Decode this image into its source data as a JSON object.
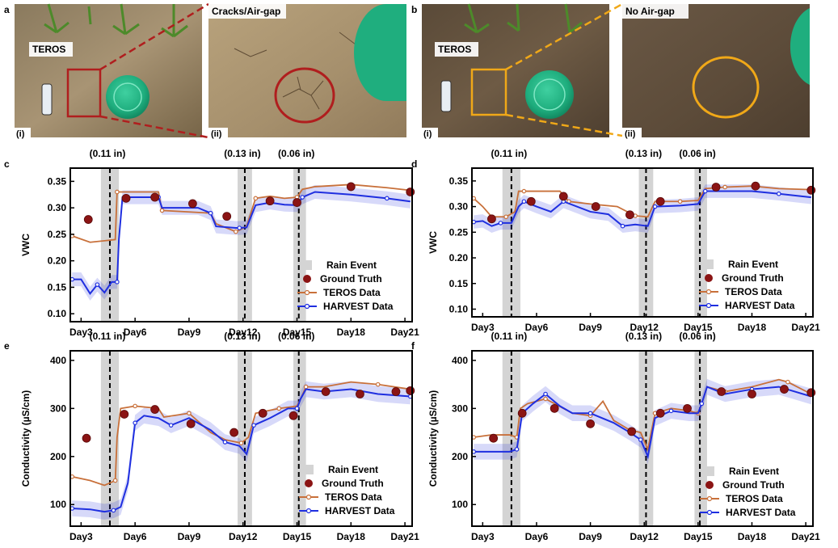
{
  "photos": {
    "a": {
      "letter": "a",
      "overlay_label": "TEROS",
      "zoom_caption": "Cracks/Air-gap",
      "sub_left": "(i)",
      "sub_right": "(ii)",
      "accent": "#b01e1e"
    },
    "b": {
      "letter": "b",
      "overlay_label": "TEROS",
      "zoom_caption": "No Air-gap",
      "sub_left": "(i)",
      "sub_right": "(ii)",
      "accent": "#f0a818"
    }
  },
  "legend_labels": {
    "rain": "Rain Event",
    "truth": "Ground Truth",
    "teros": "TEROS Data",
    "harvest": "HARVEST Data"
  },
  "colors": {
    "teros": "#c8703a",
    "harvest": "#1f2fe0",
    "truth": "#8b1414",
    "rain": "#d4d4d4"
  },
  "chart_data": [
    {
      "panel": "c",
      "type": "line",
      "ylabel": "VWC",
      "xlim": [
        2.4,
        21.4
      ],
      "ylim": [
        0.085,
        0.375
      ],
      "yticks": [
        0.1,
        0.15,
        0.2,
        0.25,
        0.3,
        0.35
      ],
      "ytick_labels": [
        "0.10",
        "0.15",
        "0.20",
        "0.25",
        "0.30",
        "0.35"
      ],
      "xticks": [
        3,
        6,
        9,
        12,
        15,
        18,
        21
      ],
      "xtick_labels": [
        "Day3",
        "Day6",
        "Day9",
        "Day12",
        "Day15",
        "Day18",
        "Day21"
      ],
      "rain_events": [
        {
          "start": 4.1,
          "end": 5.1,
          "line": 4.6,
          "label": "(0.11 in)"
        },
        {
          "start": 11.7,
          "end": 12.5,
          "line": 12.1,
          "label": "(0.13 in)"
        },
        {
          "start": 14.8,
          "end": 15.5,
          "line": 15.1,
          "label": "(0.06 in)"
        }
      ],
      "series": [
        {
          "name": "TEROS Data",
          "key": "teros",
          "x": [
            2.5,
            3.5,
            4.9,
            5.0,
            5.2,
            7.3,
            7.5,
            10.2,
            10.5,
            11.6,
            11.8,
            12.2,
            12.7,
            13.5,
            14.3,
            15.0,
            15.3,
            16.0,
            18.0,
            20.0,
            21.3
          ],
          "y": [
            0.247,
            0.235,
            0.24,
            0.33,
            0.33,
            0.33,
            0.295,
            0.29,
            0.27,
            0.255,
            0.258,
            0.265,
            0.318,
            0.322,
            0.318,
            0.32,
            0.335,
            0.34,
            0.344,
            0.338,
            0.333
          ]
        },
        {
          "name": "HARVEST Data",
          "key": "harvest",
          "x": [
            2.5,
            3.0,
            3.5,
            3.9,
            4.3,
            4.7,
            5.0,
            5.1,
            5.3,
            7.3,
            7.5,
            9.5,
            10.2,
            10.5,
            11.6,
            11.8,
            12.2,
            12.7,
            13.5,
            14.3,
            15.0,
            15.3,
            16.0,
            18.0,
            20.0,
            21.3
          ],
          "y": [
            0.165,
            0.165,
            0.138,
            0.155,
            0.14,
            0.16,
            0.16,
            0.24,
            0.32,
            0.32,
            0.3,
            0.3,
            0.29,
            0.265,
            0.262,
            0.262,
            0.263,
            0.305,
            0.31,
            0.306,
            0.305,
            0.32,
            0.33,
            0.325,
            0.318,
            0.312
          ]
        },
        {
          "name": "Ground Truth",
          "key": "truth",
          "x": [
            3.4,
            5.5,
            7.1,
            9.2,
            11.1,
            13.5,
            15.0,
            18.0,
            21.3
          ],
          "y": [
            0.278,
            0.318,
            0.32,
            0.308,
            0.284,
            0.313,
            0.31,
            0.34,
            0.33
          ]
        }
      ]
    },
    {
      "panel": "d",
      "type": "line",
      "ylabel": "VWC",
      "xlim": [
        2.4,
        21.4
      ],
      "ylim": [
        0.085,
        0.375
      ],
      "yticks": [
        0.1,
        0.15,
        0.2,
        0.25,
        0.3,
        0.35
      ],
      "ytick_labels": [
        "0.10",
        "0.15",
        "0.20",
        "0.25",
        "0.30",
        "0.35"
      ],
      "xticks": [
        3,
        6,
        9,
        12,
        15,
        18,
        21
      ],
      "xtick_labels": [
        "Day3",
        "Day6",
        "Day9",
        "Day12",
        "Day15",
        "Day18",
        "Day21"
      ],
      "rain_events": [
        {
          "start": 4.1,
          "end": 5.1,
          "line": 4.6,
          "label": "(0.11 in)"
        },
        {
          "start": 11.7,
          "end": 12.5,
          "line": 12.1,
          "label": "(0.13 in)"
        },
        {
          "start": 14.8,
          "end": 15.5,
          "line": 15.1,
          "label": "(0.06 in)"
        }
      ],
      "series": [
        {
          "name": "TEROS Data",
          "key": "teros",
          "x": [
            2.5,
            3.0,
            3.5,
            4.3,
            4.8,
            5.0,
            5.3,
            6.5,
            7.3,
            7.8,
            9.0,
            10.5,
            11.5,
            12.2,
            12.6,
            14.0,
            15.0,
            15.4,
            16.5,
            18.0,
            19.5,
            21.3
          ],
          "y": [
            0.316,
            0.3,
            0.28,
            0.28,
            0.29,
            0.33,
            0.33,
            0.33,
            0.33,
            0.31,
            0.305,
            0.3,
            0.282,
            0.28,
            0.31,
            0.31,
            0.312,
            0.335,
            0.338,
            0.34,
            0.335,
            0.333
          ]
        },
        {
          "name": "HARVEST Data",
          "key": "harvest",
          "x": [
            2.5,
            3.0,
            3.5,
            4.0,
            4.6,
            5.0,
            5.3,
            6.0,
            6.8,
            7.5,
            9.0,
            10.0,
            10.8,
            11.5,
            12.2,
            12.6,
            14.0,
            15.0,
            15.4,
            16.5,
            18.0,
            19.5,
            21.3
          ],
          "y": [
            0.27,
            0.272,
            0.262,
            0.268,
            0.268,
            0.3,
            0.31,
            0.3,
            0.29,
            0.31,
            0.29,
            0.285,
            0.262,
            0.265,
            0.262,
            0.3,
            0.302,
            0.305,
            0.33,
            0.33,
            0.33,
            0.325,
            0.318
          ]
        },
        {
          "name": "Ground Truth",
          "key": "truth",
          "x": [
            3.5,
            5.7,
            7.5,
            9.3,
            11.2,
            12.9,
            16.0,
            18.2,
            21.3
          ],
          "y": [
            0.276,
            0.31,
            0.32,
            0.3,
            0.284,
            0.31,
            0.338,
            0.34,
            0.332
          ]
        }
      ]
    },
    {
      "panel": "e",
      "type": "line",
      "ylabel": "Conductivity (µS/cm)",
      "xlim": [
        2.4,
        21.4
      ],
      "ylim": [
        55,
        420
      ],
      "yticks": [
        100,
        200,
        300,
        400
      ],
      "ytick_labels": [
        "100",
        "200",
        "300",
        "400"
      ],
      "xticks": [
        3,
        6,
        9,
        12,
        15,
        18,
        21
      ],
      "xtick_labels": [
        "Day3",
        "Day6",
        "Day9",
        "Day12",
        "Day15",
        "Day18",
        "Day21"
      ],
      "rain_events": [
        {
          "start": 4.1,
          "end": 5.1,
          "line": 4.6,
          "label": "(0.11 in)"
        },
        {
          "start": 11.7,
          "end": 12.5,
          "line": 12.1,
          "label": "(0.13 in)"
        },
        {
          "start": 14.8,
          "end": 15.5,
          "line": 15.1,
          "label": "(0.06 in)"
        }
      ],
      "series": [
        {
          "name": "TEROS Data",
          "key": "teros",
          "x": [
            2.5,
            3.5,
            4.3,
            4.9,
            5.0,
            5.2,
            6.0,
            7.3,
            7.6,
            9.0,
            10.2,
            11.0,
            11.9,
            12.3,
            12.7,
            14.0,
            15.0,
            15.2,
            15.5,
            16.5,
            18.0,
            19.5,
            21.3
          ],
          "y": [
            158,
            150,
            140,
            150,
            240,
            300,
            305,
            300,
            282,
            290,
            250,
            235,
            228,
            240,
            290,
            300,
            305,
            320,
            345,
            345,
            355,
            350,
            340
          ]
        },
        {
          "name": "HARVEST Data",
          "key": "harvest",
          "x": [
            2.5,
            3.5,
            4.3,
            4.8,
            5.2,
            5.6,
            6.0,
            6.5,
            7.3,
            8.0,
            9.0,
            10.2,
            11.0,
            11.8,
            12.2,
            12.6,
            13.5,
            14.5,
            15.0,
            15.2,
            15.5,
            16.5,
            18.0,
            19.5,
            21.3
          ],
          "y": [
            92,
            90,
            85,
            88,
            95,
            145,
            270,
            285,
            280,
            265,
            280,
            255,
            230,
            222,
            205,
            265,
            280,
            300,
            300,
            320,
            340,
            335,
            340,
            330,
            325
          ]
        },
        {
          "name": "Ground Truth",
          "key": "truth",
          "x": [
            3.3,
            5.4,
            7.1,
            9.1,
            11.5,
            13.1,
            14.8,
            16.6,
            18.5,
            20.5,
            21.3
          ],
          "y": [
            238,
            288,
            298,
            268,
            250,
            290,
            285,
            335,
            330,
            335,
            337
          ]
        }
      ]
    },
    {
      "panel": "f",
      "type": "line",
      "ylabel": "Conductivity (µS/cm)",
      "xlim": [
        2.4,
        21.4
      ],
      "ylim": [
        55,
        420
      ],
      "yticks": [
        100,
        200,
        300,
        400
      ],
      "ytick_labels": [
        "100",
        "200",
        "300",
        "400"
      ],
      "xticks": [
        3,
        6,
        9,
        12,
        15,
        18,
        21
      ],
      "xtick_labels": [
        "Day3",
        "Day6",
        "Day9",
        "Day12",
        "Day15",
        "Day18",
        "Day21"
      ],
      "rain_events": [
        {
          "start": 4.1,
          "end": 5.1,
          "line": 4.6,
          "label": "(0.11 in)"
        },
        {
          "start": 11.7,
          "end": 12.5,
          "line": 12.1,
          "label": "(0.13 in)"
        },
        {
          "start": 14.8,
          "end": 15.5,
          "line": 15.1,
          "label": "(0.06 in)"
        }
      ],
      "series": [
        {
          "name": "TEROS Data",
          "key": "teros",
          "x": [
            2.5,
            3.5,
            4.5,
            4.9,
            5.1,
            5.5,
            6.5,
            7.5,
            8.0,
            9.0,
            9.7,
            10.3,
            11.2,
            11.8,
            12.2,
            12.6,
            13.5,
            14.5,
            15.0,
            15.2,
            15.5,
            16.5,
            18.0,
            19.5,
            20.0,
            21.3
          ],
          "y": [
            240,
            245,
            245,
            240,
            300,
            310,
            320,
            300,
            290,
            285,
            315,
            275,
            255,
            250,
            215,
            290,
            300,
            295,
            290,
            310,
            345,
            335,
            345,
            360,
            355,
            330
          ]
        },
        {
          "name": "HARVEST Data",
          "key": "harvest",
          "x": [
            2.5,
            3.5,
            4.5,
            4.9,
            5.2,
            5.8,
            6.5,
            7.3,
            8.0,
            9.0,
            10.3,
            11.2,
            11.8,
            12.2,
            12.6,
            13.5,
            14.5,
            15.0,
            15.2,
            15.5,
            16.5,
            18.0,
            19.5,
            21.3
          ],
          "y": [
            210,
            210,
            210,
            215,
            290,
            310,
            330,
            305,
            290,
            290,
            270,
            250,
            235,
            200,
            280,
            295,
            290,
            290,
            310,
            345,
            330,
            340,
            345,
            325
          ]
        },
        {
          "name": "Ground Truth",
          "key": "truth",
          "x": [
            3.6,
            5.2,
            7.0,
            9.0,
            11.3,
            12.9,
            14.4,
            16.3,
            18.0,
            19.8,
            21.3
          ],
          "y": [
            238,
            290,
            300,
            268,
            252,
            290,
            300,
            335,
            330,
            340,
            333
          ]
        }
      ]
    }
  ]
}
